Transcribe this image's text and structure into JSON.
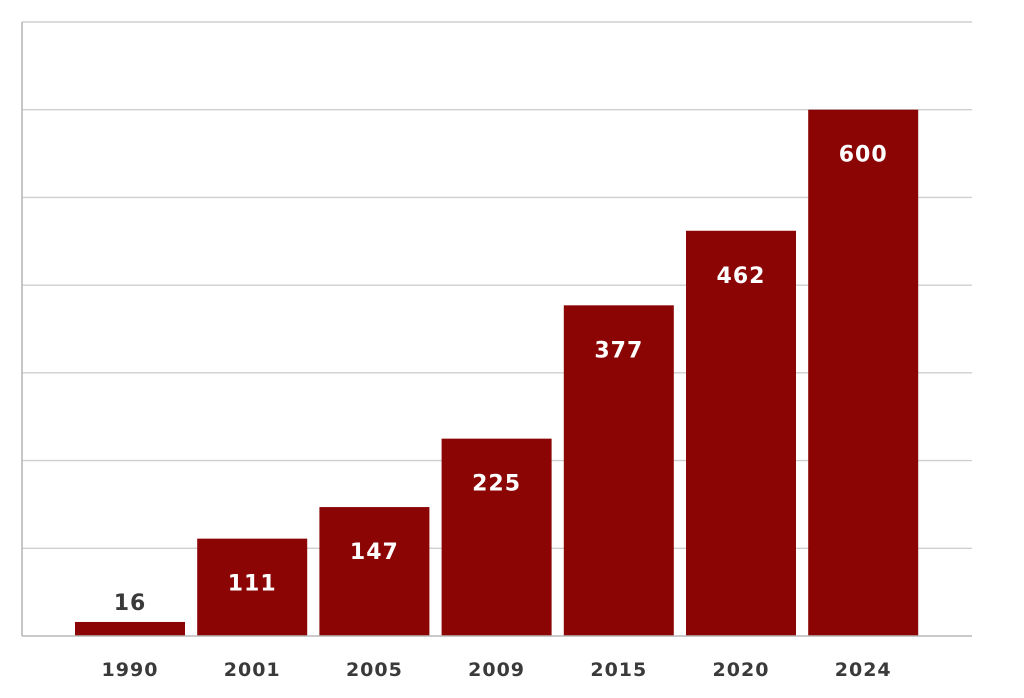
{
  "chart_data": {
    "type": "bar",
    "title": "",
    "xlabel": "",
    "ylabel": "",
    "categories": [
      "1990",
      "2001",
      "2005",
      "2009",
      "2015",
      "2020",
      "2024"
    ],
    "values": [
      16,
      111,
      147,
      225,
      377,
      462,
      600
    ],
    "ylim": [
      0,
      700
    ],
    "grid": true,
    "bar_color": "#8c0505",
    "value_label_color_inside": "#ffffff",
    "value_label_color_outside": "#3a3a3a"
  }
}
